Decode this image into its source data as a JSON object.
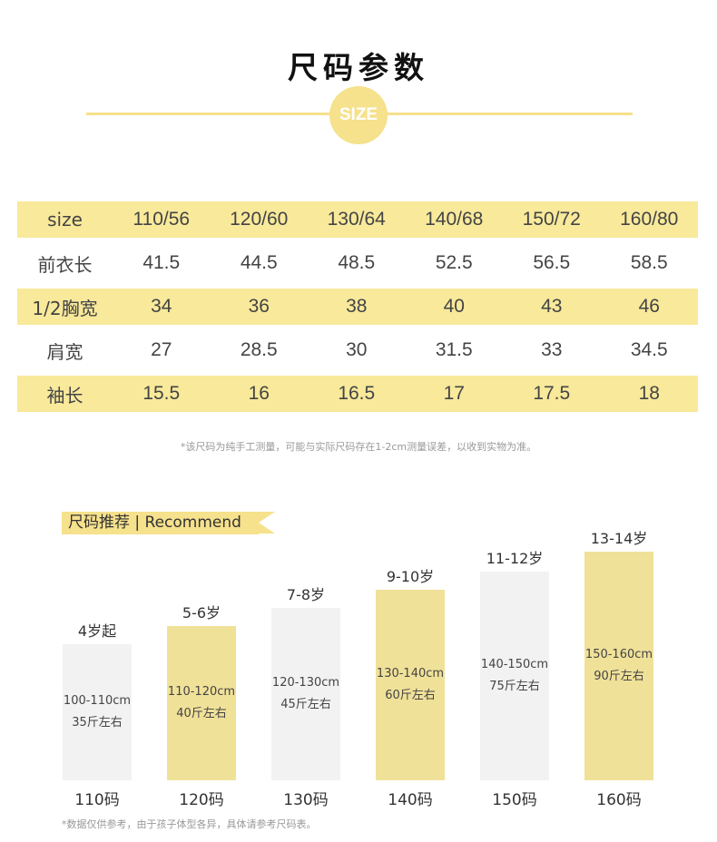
{
  "header": {
    "title": "尺码参数",
    "badge": "SIZE"
  },
  "size_table": {
    "sizes": [
      "110/56",
      "120/60",
      "130/64",
      "140/68",
      "150/72",
      "160/80"
    ],
    "size_label": "size",
    "rows": [
      {
        "label": "前衣长",
        "values": [
          "41.5",
          "44.5",
          "48.5",
          "52.5",
          "56.5",
          "58.5"
        ]
      },
      {
        "label": "1/2胸宽",
        "values": [
          "34",
          "36",
          "38",
          "40",
          "43",
          "46"
        ]
      },
      {
        "label": "肩宽",
        "values": [
          "27",
          "28.5",
          "30",
          "31.5",
          "33",
          "34.5"
        ]
      },
      {
        "label": "袖长",
        "values": [
          "15.5",
          "16",
          "16.5",
          "17",
          "17.5",
          "18"
        ]
      }
    ]
  },
  "note_measure": "*该尺码为纯手工测量，可能与实际尺码存在1-2cm测量误差，以收到实物为准。",
  "recommend": {
    "tag": "尺码推荐 | Recommend",
    "bars": [
      {
        "age": "4岁起",
        "height": "100-110cm",
        "weight": "35斤左右",
        "code": "110码",
        "highlight": false
      },
      {
        "age": "5-6岁",
        "height": "110-120cm",
        "weight": "40斤左右",
        "code": "120码",
        "highlight": true
      },
      {
        "age": "7-8岁",
        "height": "120-130cm",
        "weight": "45斤左右",
        "code": "130码",
        "highlight": false
      },
      {
        "age": "9-10岁",
        "height": "130-140cm",
        "weight": "60斤左右",
        "code": "140码",
        "highlight": true
      },
      {
        "age": "11-12岁",
        "height": "140-150cm",
        "weight": "75斤左右",
        "code": "150码",
        "highlight": false
      },
      {
        "age": "13-14岁",
        "height": "150-160cm",
        "weight": "90斤左右",
        "code": "160码",
        "highlight": true
      }
    ]
  },
  "note_data": "*数据仅供参考，由于孩子体型各异，具体请参考尺码表。",
  "colors": {
    "accent": "#f6e18c",
    "row_highlight": "#f8e99b",
    "bar_gray": "#f2f2f2",
    "bar_yellow": "#f0e199"
  }
}
